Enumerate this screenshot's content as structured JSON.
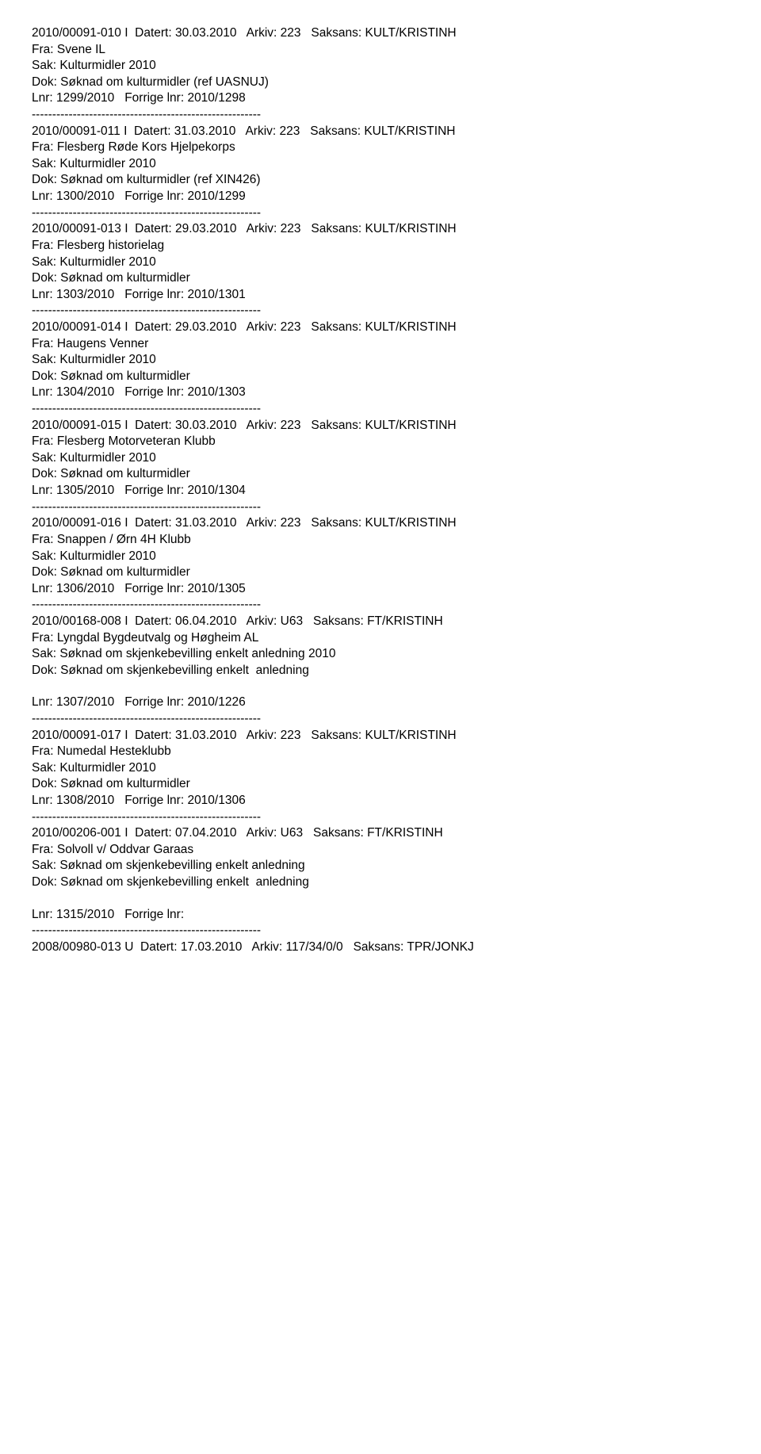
{
  "separator": "--------------------------------------------------------",
  "entries": [
    {
      "id": "2010/00091-010",
      "type": "I",
      "datert": "30.03.2010",
      "arkiv": "223",
      "saksans": "KULT/KRISTINH",
      "fra": "Svene IL",
      "sak": "Kulturmidler 2010",
      "dok": "Søknad om kulturmidler (ref UASNUJ)",
      "lnr": "1299/2010",
      "forrige": "2010/1298",
      "blank_before_lnr": false
    },
    {
      "id": "2010/00091-011",
      "type": "I",
      "datert": "31.03.2010",
      "arkiv": "223",
      "saksans": "KULT/KRISTINH",
      "fra": "Flesberg Røde Kors Hjelpekorps",
      "sak": "Kulturmidler 2010",
      "dok": "Søknad om kulturmidler (ref XIN426)",
      "lnr": "1300/2010",
      "forrige": "2010/1299",
      "blank_before_lnr": false
    },
    {
      "id": "2010/00091-013",
      "type": "I",
      "datert": "29.03.2010",
      "arkiv": "223",
      "saksans": "KULT/KRISTINH",
      "fra": "Flesberg historielag",
      "sak": "Kulturmidler 2010",
      "dok": "Søknad om kulturmidler",
      "lnr": "1303/2010",
      "forrige": "2010/1301",
      "blank_before_lnr": false
    },
    {
      "id": "2010/00091-014",
      "type": "I",
      "datert": "29.03.2010",
      "arkiv": "223",
      "saksans": "KULT/KRISTINH",
      "fra": "Haugens Venner",
      "sak": "Kulturmidler 2010",
      "dok": "Søknad om kulturmidler",
      "lnr": "1304/2010",
      "forrige": "2010/1303",
      "blank_before_lnr": false
    },
    {
      "id": "2010/00091-015",
      "type": "I",
      "datert": "30.03.2010",
      "arkiv": "223",
      "saksans": "KULT/KRISTINH",
      "fra": "Flesberg Motorveteran Klubb",
      "sak": "Kulturmidler 2010",
      "dok": "Søknad om kulturmidler",
      "lnr": "1305/2010",
      "forrige": "2010/1304",
      "blank_before_lnr": false
    },
    {
      "id": "2010/00091-016",
      "type": "I",
      "datert": "31.03.2010",
      "arkiv": "223",
      "saksans": "KULT/KRISTINH",
      "fra": "Snappen / Ørn 4H Klubb",
      "sak": "Kulturmidler 2010",
      "dok": "Søknad om kulturmidler",
      "lnr": "1306/2010",
      "forrige": "2010/1305",
      "blank_before_lnr": false
    },
    {
      "id": "2010/00168-008",
      "type": "I",
      "datert": "06.04.2010",
      "arkiv": "U63",
      "saksans": "FT/KRISTINH",
      "fra": "Lyngdal Bygdeutvalg og Høgheim AL",
      "sak": "Søknad om skjenkebevilling enkelt anledning 2010",
      "dok": "Søknad om skjenkebevilling enkelt  anledning",
      "lnr": "1307/2010",
      "forrige": "2010/1226",
      "blank_before_lnr": true
    },
    {
      "id": "2010/00091-017",
      "type": "I",
      "datert": "31.03.2010",
      "arkiv": "223",
      "saksans": "KULT/KRISTINH",
      "fra": "Numedal Hesteklubb",
      "sak": "Kulturmidler 2010",
      "dok": "Søknad om kulturmidler",
      "lnr": "1308/2010",
      "forrige": "2010/1306",
      "blank_before_lnr": false
    },
    {
      "id": "2010/00206-001",
      "type": "I",
      "datert": "07.04.2010",
      "arkiv": "U63",
      "saksans": "FT/KRISTINH",
      "fra": "Solvoll v/ Oddvar Garaas",
      "sak": "Søknad om skjenkebevilling enkelt anledning",
      "dok": "Søknad om skjenkebevilling enkelt  anledning",
      "lnr": "1315/2010",
      "forrige": "",
      "blank_before_lnr": true
    }
  ],
  "trailing": {
    "id": "2008/00980-013",
    "type": "U",
    "datert": "17.03.2010",
    "arkiv": "117/34/0/0",
    "saksans": "TPR/JONKJ"
  },
  "labels": {
    "datert": "Datert:",
    "arkiv": "Arkiv:",
    "saksans": "Saksans:",
    "fra": "Fra:",
    "sak": "Sak:",
    "dok": "Dok:",
    "lnr": "Lnr:",
    "forrige": "Forrige lnr:"
  }
}
